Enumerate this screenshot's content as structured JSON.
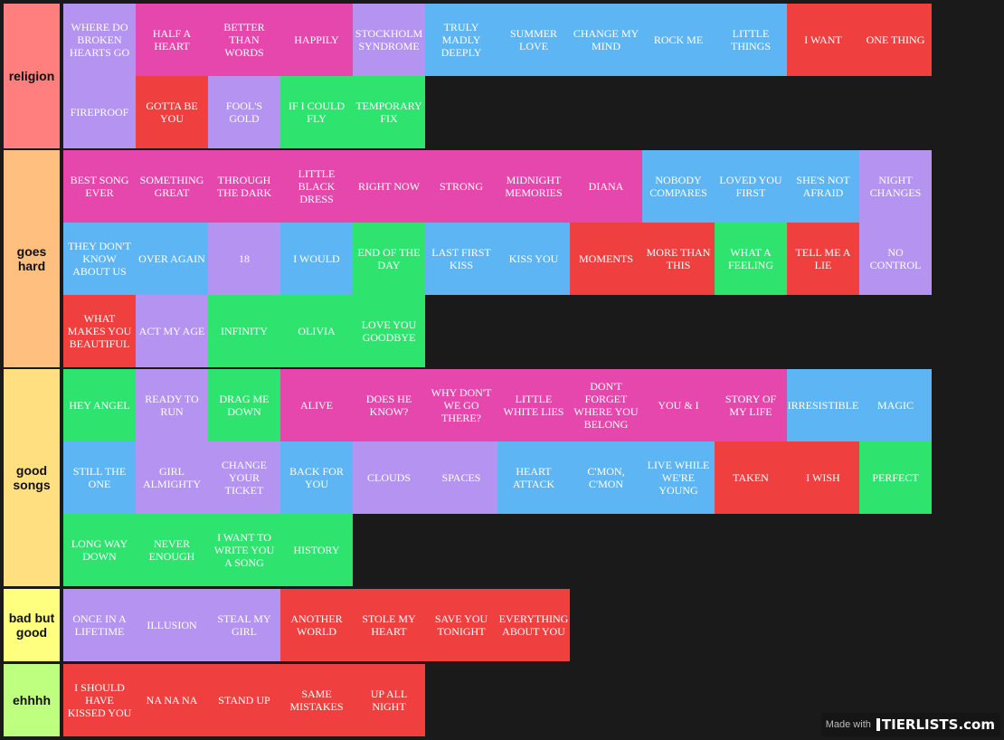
{
  "tiers": [
    {
      "label": "religion",
      "color": "#ff7f7f",
      "items": [
        {
          "text": "WHERE DO BROKEN HEARTS GO",
          "color": "purple"
        },
        {
          "text": "HALF A HEART",
          "color": "pink"
        },
        {
          "text": "BETTER THAN WORDS",
          "color": "pink"
        },
        {
          "text": "HAPPILY",
          "color": "pink"
        },
        {
          "text": "STOCKHOLM SYNDROME",
          "color": "purple"
        },
        {
          "text": "TRULY MADLY DEEPLY",
          "color": "blue"
        },
        {
          "text": "SUMMER LOVE",
          "color": "blue"
        },
        {
          "text": "CHANGE MY MIND",
          "color": "blue"
        },
        {
          "text": "ROCK ME",
          "color": "blue"
        },
        {
          "text": "LITTLE THINGS",
          "color": "blue"
        },
        {
          "text": "I WANT",
          "color": "red"
        },
        {
          "text": "ONE THING",
          "color": "red"
        },
        {
          "text": "FIREPROOF",
          "color": "purple"
        },
        {
          "text": "GOTTA BE YOU",
          "color": "red"
        },
        {
          "text": "FOOL'S GOLD",
          "color": "purple"
        },
        {
          "text": "IF I COULD FLY",
          "color": "green"
        },
        {
          "text": "TEMPORARY FIX",
          "color": "green"
        }
      ]
    },
    {
      "label": "goes hard",
      "color": "#ffbf7f",
      "items": [
        {
          "text": "BEST SONG EVER",
          "color": "pink"
        },
        {
          "text": "SOMETHING GREAT",
          "color": "pink"
        },
        {
          "text": "THROUGH THE DARK",
          "color": "pink"
        },
        {
          "text": "LITTLE BLACK DRESS",
          "color": "pink"
        },
        {
          "text": "RIGHT NOW",
          "color": "pink"
        },
        {
          "text": "STRONG",
          "color": "pink"
        },
        {
          "text": "MIDNIGHT MEMORIES",
          "color": "pink"
        },
        {
          "text": "DIANA",
          "color": "pink"
        },
        {
          "text": "NOBODY COMPARES",
          "color": "blue"
        },
        {
          "text": "LOVED YOU FIRST",
          "color": "blue"
        },
        {
          "text": "SHE'S NOT AFRAID",
          "color": "blue"
        },
        {
          "text": "NIGHT CHANGES",
          "color": "purple"
        },
        {
          "text": "THEY DON'T KNOW ABOUT US",
          "color": "blue"
        },
        {
          "text": "OVER AGAIN",
          "color": "blue"
        },
        {
          "text": "18",
          "color": "purple"
        },
        {
          "text": "I WOULD",
          "color": "blue"
        },
        {
          "text": "END OF THE DAY",
          "color": "green"
        },
        {
          "text": "LAST FIRST KISS",
          "color": "blue"
        },
        {
          "text": "KISS YOU",
          "color": "blue"
        },
        {
          "text": "MOMENTS",
          "color": "red"
        },
        {
          "text": "MORE THAN THIS",
          "color": "red"
        },
        {
          "text": "WHAT A FEELING",
          "color": "green"
        },
        {
          "text": "TELL ME A LIE",
          "color": "red"
        },
        {
          "text": "NO CONTROL",
          "color": "purple"
        },
        {
          "text": "WHAT MAKES YOU BEAUTIFUL",
          "color": "red"
        },
        {
          "text": "ACT MY AGE",
          "color": "purple"
        },
        {
          "text": "INFINITY",
          "color": "green"
        },
        {
          "text": "OLIVIA",
          "color": "green"
        },
        {
          "text": "LOVE YOU GOODBYE",
          "color": "green"
        }
      ]
    },
    {
      "label": "good songs",
      "color": "#ffdf7f",
      "items": [
        {
          "text": "HEY ANGEL",
          "color": "green"
        },
        {
          "text": "READY TO RUN",
          "color": "purple"
        },
        {
          "text": "DRAG ME DOWN",
          "color": "green"
        },
        {
          "text": "ALIVE",
          "color": "pink"
        },
        {
          "text": "DOES HE KNOW?",
          "color": "pink"
        },
        {
          "text": "WHY DON'T WE GO THERE?",
          "color": "pink"
        },
        {
          "text": "LITTLE WHITE LIES",
          "color": "pink"
        },
        {
          "text": "DON'T FORGET WHERE YOU BELONG",
          "color": "pink"
        },
        {
          "text": "YOU & I",
          "color": "pink"
        },
        {
          "text": "STORY OF MY LIFE",
          "color": "pink"
        },
        {
          "text": "IRRESISTIBLE",
          "color": "blue"
        },
        {
          "text": "MAGIC",
          "color": "blue"
        },
        {
          "text": "STILL THE ONE",
          "color": "blue"
        },
        {
          "text": "GIRL ALMIGHTY",
          "color": "purple"
        },
        {
          "text": "CHANGE YOUR TICKET",
          "color": "purple"
        },
        {
          "text": "BACK FOR YOU",
          "color": "blue"
        },
        {
          "text": "CLOUDS",
          "color": "purple"
        },
        {
          "text": "SPACES",
          "color": "purple"
        },
        {
          "text": "HEART ATTACK",
          "color": "blue"
        },
        {
          "text": "C'MON, C'MON",
          "color": "blue"
        },
        {
          "text": "LIVE WHILE WE'RE YOUNG",
          "color": "blue"
        },
        {
          "text": "TAKEN",
          "color": "red"
        },
        {
          "text": "I WISH",
          "color": "red"
        },
        {
          "text": "PERFECT",
          "color": "green"
        },
        {
          "text": "LONG WAY DOWN",
          "color": "green"
        },
        {
          "text": "NEVER ENOUGH",
          "color": "green"
        },
        {
          "text": "I WANT TO WRITE YOU A SONG",
          "color": "green"
        },
        {
          "text": "HISTORY",
          "color": "green"
        }
      ]
    },
    {
      "label": "bad but good",
      "color": "#ffff7f",
      "items": [
        {
          "text": "ONCE IN A LIFETIME",
          "color": "purple"
        },
        {
          "text": "ILLUSION",
          "color": "purple"
        },
        {
          "text": "STEAL MY GIRL",
          "color": "purple"
        },
        {
          "text": "ANOTHER WORLD",
          "color": "red"
        },
        {
          "text": "STOLE MY HEART",
          "color": "red"
        },
        {
          "text": "SAVE YOU TONIGHT",
          "color": "red"
        },
        {
          "text": "EVERYTHING ABOUT YOU",
          "color": "red"
        }
      ]
    },
    {
      "label": "ehhhh",
      "color": "#bfff7f",
      "items": [
        {
          "text": "I SHOULD HAVE KISSED YOU",
          "color": "red"
        },
        {
          "text": "NA NA NA",
          "color": "red"
        },
        {
          "text": "STAND UP",
          "color": "red"
        },
        {
          "text": "SAME MISTAKES",
          "color": "red"
        },
        {
          "text": "UP ALL NIGHT",
          "color": "red"
        }
      ]
    }
  ],
  "watermark": {
    "made_with": "Made with",
    "brand": "TIERLISTS.com"
  }
}
